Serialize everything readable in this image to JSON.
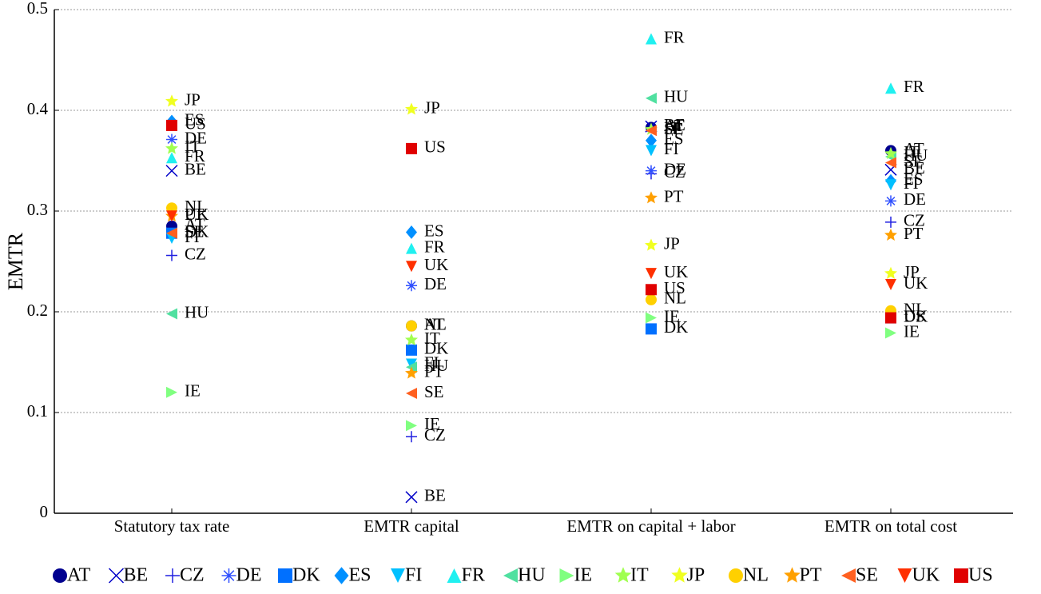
{
  "chart_data": {
    "type": "scatter",
    "y_label": "EMTR",
    "categories": [
      "Statutory tax rate",
      "EMTR capital",
      "EMTR on capital + labor",
      "EMTR on total cost"
    ],
    "ylim": [
      0,
      0.5
    ],
    "yticks": [
      0,
      0.1,
      0.2,
      0.3,
      0.4,
      0.5
    ],
    "grid": true,
    "legend": "bottom",
    "series": [
      {
        "name": "AT",
        "color": "#00008f",
        "marker": "circle",
        "values": [
          0.285,
          0.186,
          0.383,
          0.36
        ]
      },
      {
        "name": "BE",
        "color": "#0000c8",
        "marker": "x",
        "values": [
          0.34,
          0.016,
          0.384,
          0.341
        ]
      },
      {
        "name": "CZ",
        "color": "#2020e0",
        "marker": "plus",
        "values": [
          0.256,
          0.076,
          0.337,
          0.289
        ]
      },
      {
        "name": "DE",
        "color": "#3050ff",
        "marker": "asterisk",
        "values": [
          0.371,
          0.226,
          0.34,
          0.31
        ]
      },
      {
        "name": "DK",
        "color": "#0070ff",
        "marker": "square",
        "values": [
          0.278,
          0.162,
          0.183,
          0.194
        ]
      },
      {
        "name": "ES",
        "color": "#0090ff",
        "marker": "diamond",
        "values": [
          0.389,
          0.279,
          0.37,
          0.33
        ]
      },
      {
        "name": "FI",
        "color": "#00c0ff",
        "marker": "tri-down",
        "values": [
          0.273,
          0.148,
          0.36,
          0.326
        ]
      },
      {
        "name": "FR",
        "color": "#20f0f0",
        "marker": "tri-up",
        "values": [
          0.353,
          0.263,
          0.471,
          0.422
        ]
      },
      {
        "name": "HU",
        "color": "#50e0a0",
        "marker": "tri-left",
        "values": [
          0.198,
          0.145,
          0.412,
          0.354
        ]
      },
      {
        "name": "IE",
        "color": "#80ff80",
        "marker": "tri-right",
        "values": [
          0.12,
          0.087,
          0.194,
          0.179
        ]
      },
      {
        "name": "IT",
        "color": "#a0ff50",
        "marker": "star",
        "values": [
          0.362,
          0.172,
          0.381,
          0.357
        ]
      },
      {
        "name": "JP",
        "color": "#f0ff20",
        "marker": "star",
        "values": [
          0.409,
          0.401,
          0.266,
          0.238
        ]
      },
      {
        "name": "NL",
        "color": "#ffd000",
        "marker": "circle",
        "values": [
          0.303,
          0.186,
          0.212,
          0.201
        ]
      },
      {
        "name": "PT",
        "color": "#ffa000",
        "marker": "star",
        "values": [
          0.295,
          0.139,
          0.313,
          0.276
        ]
      },
      {
        "name": "SE",
        "color": "#ff6020",
        "marker": "tri-left",
        "values": [
          0.278,
          0.119,
          0.38,
          0.348
        ]
      },
      {
        "name": "UK",
        "color": "#ff3000",
        "marker": "tri-down",
        "values": [
          0.295,
          0.245,
          0.238,
          0.227
        ]
      },
      {
        "name": "US",
        "color": "#e00000",
        "marker": "square",
        "values": [
          0.385,
          0.362,
          0.222,
          0.194
        ]
      }
    ]
  }
}
